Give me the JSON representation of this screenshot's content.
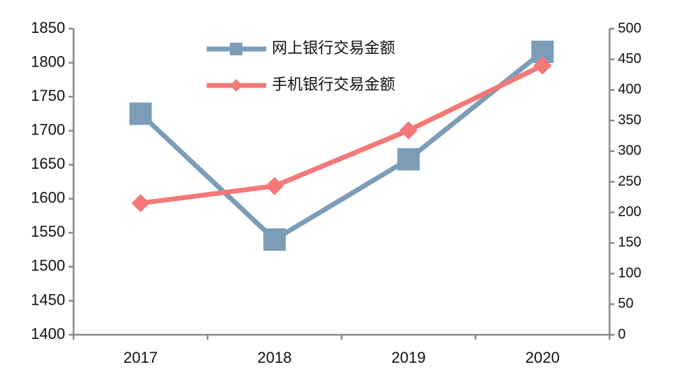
{
  "chart_data": {
    "type": "line",
    "categories": [
      "2017",
      "2018",
      "2019",
      "2020"
    ],
    "series": [
      {
        "name": "网上银行交易金额",
        "color": "#7c9db8",
        "marker": "square",
        "values": [
          1725,
          1540,
          1658,
          1816
        ]
      },
      {
        "name": "手机银行交易金额",
        "color": "#f47878",
        "marker": "diamond",
        "axis": "y2",
        "values": [
          215,
          243,
          334,
          440
        ]
      }
    ],
    "ylim": [
      1400,
      1850
    ],
    "yticks": [
      1400,
      1450,
      1500,
      1550,
      1600,
      1650,
      1700,
      1750,
      1800,
      1850
    ],
    "y2lim": [
      0,
      500
    ],
    "y2ticks": [
      0,
      50,
      100,
      150,
      200,
      250,
      300,
      350,
      400,
      450,
      500
    ],
    "legend": "top"
  }
}
